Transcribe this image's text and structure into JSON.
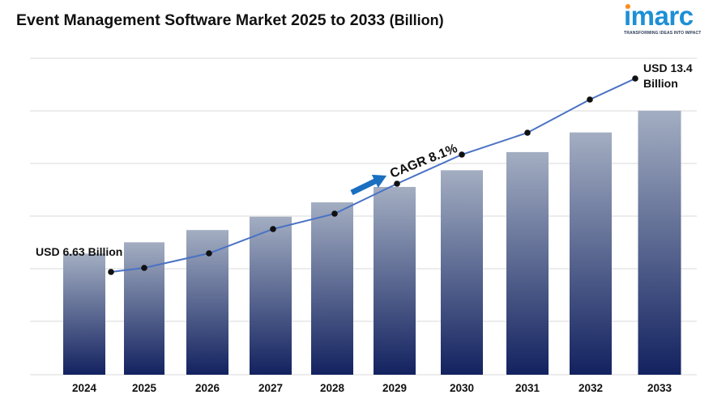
{
  "title": "Event Management Software Market 2025 to 2033",
  "title_unit": "(Billion)",
  "logo": {
    "word": "imarc",
    "tagline": "TRANSFORMING IDEAS INTO IMPACT",
    "dot_color": "#ff8c1a",
    "word_color": "#1d8fd6"
  },
  "annotations": {
    "start_label": "USD 6.63 Billion",
    "end_label_line1": "USD 13.4",
    "end_label_line2": "Billion",
    "cagr_label": "CAGR 8.1%"
  },
  "colors": {
    "bar_top": "#a3aec2",
    "bar_bottom": "#132260",
    "line": "#4a72c4",
    "arrow": "#1a6fc0",
    "grid": "#d9d9d9"
  },
  "chart_data": {
    "type": "bar",
    "categories": [
      "2024",
      "2025",
      "2026",
      "2027",
      "2028",
      "2029",
      "2030",
      "2031",
      "2032",
      "2033"
    ],
    "values": [
      6.63,
      7.17,
      7.75,
      8.38,
      9.06,
      9.79,
      10.58,
      11.44,
      12.37,
      13.4
    ],
    "grid": true,
    "overlay": "trend-line-with-markers"
  }
}
